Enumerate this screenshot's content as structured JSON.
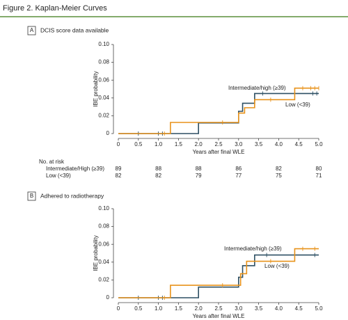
{
  "title": "Figure 2. Kaplan-Meier Curves",
  "chart_data": [
    {
      "type": "line",
      "step": true,
      "panel": "A",
      "title": "DCIS score data available",
      "xlabel": "Years after final WLE",
      "ylabel": "IBE probability",
      "xlim": [
        0,
        5
      ],
      "xticks": [
        0,
        0.5,
        {
          "value": 1,
          "label": "1.0"
        },
        1.5,
        {
          "value": 2,
          "label": "2.0"
        },
        2.5,
        {
          "value": 3,
          "label": "3.0"
        },
        3.5,
        {
          "value": 4,
          "label": "4.0"
        },
        4.5,
        {
          "value": 5,
          "label": "5.0"
        }
      ],
      "ylim": [
        0,
        0.1
      ],
      "yticks": [
        0,
        0.02,
        0.04,
        0.06,
        0.08,
        {
          "value": 0.1,
          "label": "0.10"
        }
      ],
      "series": [
        {
          "name": "Intermediate/high (≥39)",
          "color": "#2d4f63",
          "x": [
            0,
            2.0,
            3.0,
            3.1,
            3.4,
            5.0
          ],
          "values": [
            0,
            0.012,
            0.025,
            0.034,
            0.045,
            0.045
          ],
          "censor_x": [
            0.5,
            1.0,
            1.1,
            3.6,
            4.85,
            4.95
          ]
        },
        {
          "name": "Low (<39)",
          "color": "#e8921a",
          "x": [
            0,
            1.3,
            3.0,
            3.15,
            3.4,
            4.4,
            5.0
          ],
          "values": [
            0,
            0.0125,
            0.023,
            0.029,
            0.038,
            0.051,
            0.051
          ],
          "censor_x": [
            1.15,
            2.6,
            3.8,
            4.6,
            4.8,
            4.9,
            5.0
          ]
        }
      ],
      "risk_table": {
        "title": "No. at risk",
        "rows": [
          {
            "name": "Intermediate/High (≥39)",
            "values": [
              89,
              88,
              88,
              86,
              82,
              80
            ]
          },
          {
            "name": "Low (<39)",
            "values": [
              82,
              82,
              79,
              77,
              75,
              71
            ]
          }
        ]
      }
    },
    {
      "type": "line",
      "step": true,
      "panel": "B",
      "title": "Adhered to radiotherapy",
      "xlabel": "Years after final WLE",
      "ylabel": "IBE probability",
      "xlim": [
        0,
        5
      ],
      "xticks": [
        0,
        0.5,
        {
          "value": 1,
          "label": "1.0"
        },
        1.5,
        {
          "value": 2,
          "label": "2.0"
        },
        2.5,
        {
          "value": 3,
          "label": "3.0"
        },
        3.5,
        {
          "value": 4,
          "label": "4.0"
        },
        4.5,
        {
          "value": 5,
          "label": "5.0"
        }
      ],
      "ylim": [
        0,
        0.1
      ],
      "yticks": [
        0,
        0.02,
        0.04,
        0.06,
        0.08,
        {
          "value": 0.1,
          "label": "0.10"
        }
      ],
      "series": [
        {
          "name": "Intermediate/high (≥39)",
          "color": "#2d4f63",
          "x": [
            0,
            2.0,
            3.0,
            3.1,
            3.4,
            5.0
          ],
          "values": [
            0,
            0.012,
            0.023,
            0.036,
            0.048,
            0.048
          ],
          "censor_x": [
            0.5,
            1.0,
            1.1,
            3.7,
            4.9
          ]
        },
        {
          "name": "Low (<39)",
          "color": "#e8921a",
          "x": [
            0,
            1.3,
            3.05,
            3.2,
            4.4,
            5.0
          ],
          "values": [
            0,
            0.014,
            0.027,
            0.041,
            0.055,
            0.055
          ],
          "censor_x": [
            1.15,
            2.6,
            3.8,
            4.6,
            4.9
          ]
        }
      ]
    }
  ]
}
